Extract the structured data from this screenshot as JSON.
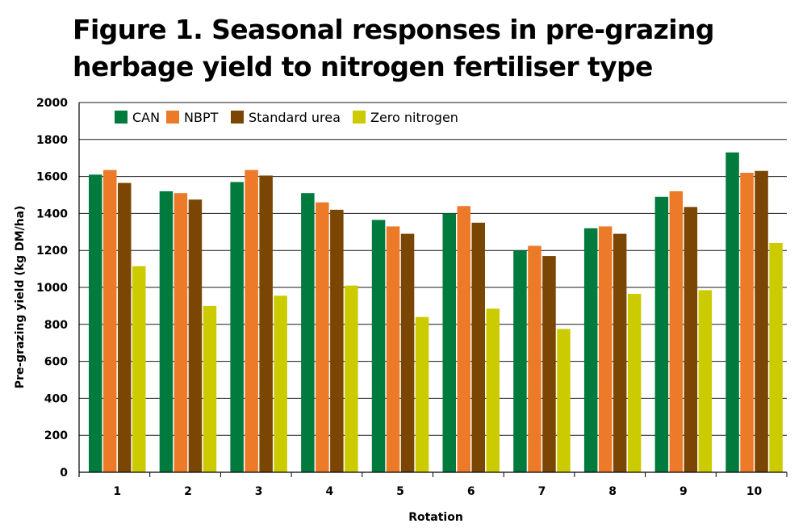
{
  "chart_data": {
    "type": "bar",
    "title": "Figure 1. Seasonal responses in pre-grazing herbage yield to nitrogen fertiliser type",
    "xlabel": "Rotation",
    "ylabel": "Pre-grazing yield (kg DM/ha)",
    "ylim": [
      0,
      2000
    ],
    "yticks": [
      "0",
      "200",
      "400",
      "600",
      "800",
      "1000",
      "1200",
      "1400",
      "1600",
      "1800",
      "2000"
    ],
    "grid": true,
    "legend_position": "top-left",
    "categories": [
      "1",
      "2",
      "3",
      "4",
      "5",
      "6",
      "7",
      "8",
      "9",
      "10"
    ],
    "series": [
      {
        "name": "CAN",
        "color": "#007a3d",
        "values": [
          1610,
          1520,
          1570,
          1510,
          1365,
          1400,
          1200,
          1320,
          1490,
          1730
        ]
      },
      {
        "name": "NBPT",
        "color": "#ec7a28",
        "values": [
          1635,
          1510,
          1635,
          1460,
          1330,
          1440,
          1225,
          1330,
          1520,
          1620
        ]
      },
      {
        "name": "Standard urea",
        "color": "#7b4503",
        "values": [
          1565,
          1475,
          1605,
          1420,
          1290,
          1350,
          1170,
          1290,
          1435,
          1630
        ]
      },
      {
        "name": "Zero nitrogen",
        "color": "#cbcb00",
        "values": [
          1115,
          900,
          955,
          1010,
          840,
          885,
          775,
          965,
          985,
          1240
        ]
      }
    ]
  }
}
